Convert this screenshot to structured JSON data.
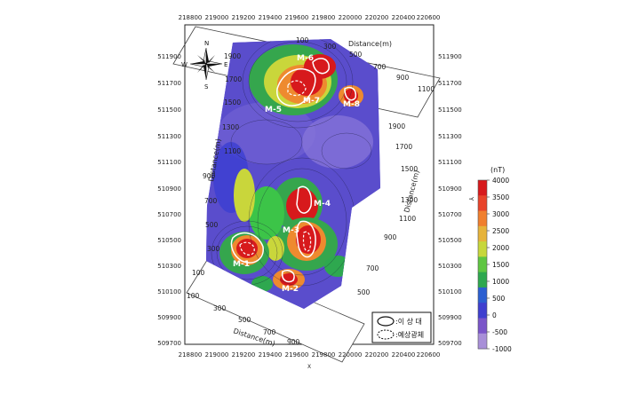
{
  "map": {
    "x_ticks": [
      "218800",
      "219000",
      "219200",
      "219400",
      "219600",
      "219800",
      "220000",
      "220200",
      "220400",
      "220600"
    ],
    "y_ticks_left": [
      "511900",
      "511700",
      "511500",
      "511300",
      "511100",
      "510900",
      "510700",
      "510500",
      "510300",
      "510100",
      "509900",
      "509700"
    ],
    "y_ticks_right": [
      "511900",
      "511700",
      "511500",
      "511300",
      "511100",
      "510900",
      "510700",
      "510500",
      "510300",
      "510100",
      "509900",
      "509700"
    ],
    "x_axis_label": "X",
    "y_axis_label": "Y",
    "compass": {
      "n": "N",
      "s": "S",
      "e": "E",
      "w": "W"
    },
    "distance_label": "Distance(m)",
    "distance_ticks_top": [
      "100",
      "300",
      "500",
      "700",
      "900",
      "1100"
    ],
    "distance_ticks_right": [
      "1900",
      "1700",
      "1500",
      "1300",
      "1100",
      "900",
      "700",
      "500"
    ],
    "distance_ticks_left": [
      "1900",
      "1700",
      "1500",
      "1300",
      "1100",
      "900",
      "700",
      "500",
      "300",
      "100"
    ],
    "distance_ticks_bottom": [
      "100",
      "300",
      "500",
      "700",
      "900"
    ],
    "zones": [
      "M-1",
      "M-2",
      "M-3",
      "M-4",
      "M-5",
      "M-6",
      "M-7",
      "M-8"
    ]
  },
  "colorbar": {
    "unit": "(nT)",
    "ticks": [
      "4000",
      "3500",
      "3000",
      "2500",
      "2000",
      "1500",
      "1000",
      "500",
      "0",
      "-500",
      "-1000"
    ],
    "colors": [
      "#d7191c",
      "#e8432a",
      "#f07f2e",
      "#e6b33a",
      "#c7d73b",
      "#5ec641",
      "#2ea84f",
      "#2b5fd1",
      "#3f3fcf",
      "#7a55c9",
      "#a88fd8"
    ]
  },
  "legend": {
    "anomaly_label": ":이 상 대",
    "expected_label": ":예상광체"
  }
}
